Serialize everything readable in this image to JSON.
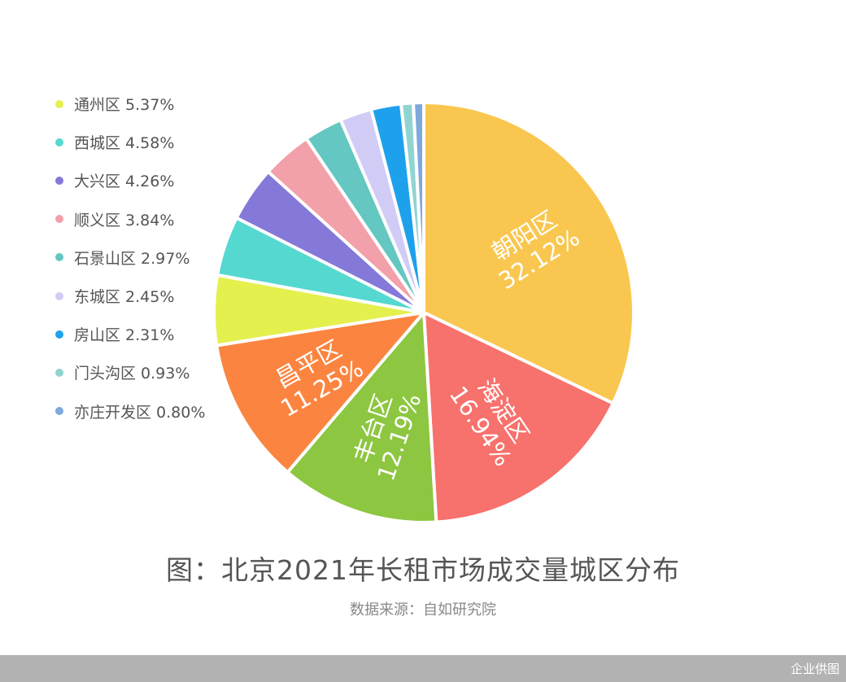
{
  "chart_data": {
    "type": "pie",
    "caption": "图：北京2021年长租市场成交量城区分布",
    "source": "数据来源：自如研究院",
    "slices": [
      {
        "name": "朝阳区",
        "value": 32.12,
        "label": "32.12%",
        "color": "#f9c74f"
      },
      {
        "name": "海淀区",
        "value": 16.94,
        "label": "16.94%",
        "color": "#f7716d"
      },
      {
        "name": "丰台区",
        "value": 12.19,
        "label": "12.19%",
        "color": "#8dc641"
      },
      {
        "name": "昌平区",
        "value": 11.25,
        "label": "11.25%",
        "color": "#fb8540"
      },
      {
        "name": "通州区",
        "value": 5.37,
        "label": "5.37%",
        "color": "#e4f04e"
      },
      {
        "name": "西城区",
        "value": 4.58,
        "label": "4.58%",
        "color": "#55d8d0"
      },
      {
        "name": "大兴区",
        "value": 4.26,
        "label": "4.26%",
        "color": "#8478d9"
      },
      {
        "name": "顺义区",
        "value": 3.84,
        "label": "3.84%",
        "color": "#f2a0a9"
      },
      {
        "name": "石景山区",
        "value": 2.97,
        "label": "2.97%",
        "color": "#64c7c1"
      },
      {
        "name": "东城区",
        "value": 2.45,
        "label": "2.45%",
        "color": "#d0ccf5"
      },
      {
        "name": "房山区",
        "value": 2.31,
        "label": "2.31%",
        "color": "#1ea1ec"
      },
      {
        "name": "门头沟区",
        "value": 0.93,
        "label": "0.93%",
        "color": "#90d4d0"
      },
      {
        "name": "亦庄开发区",
        "value": 0.8,
        "label": "0.80%",
        "color": "#7fa8dc"
      }
    ],
    "inside_labels": [
      "朝阳区",
      "海淀区",
      "丰台区",
      "昌平区"
    ],
    "legend": [
      "通州区",
      "西城区",
      "大兴区",
      "顺义区",
      "石景山区",
      "东城区",
      "房山区",
      "门头沟区",
      "亦庄开发区"
    ],
    "legend_placement": "left"
  },
  "footer": {
    "credit": "企业供图"
  }
}
